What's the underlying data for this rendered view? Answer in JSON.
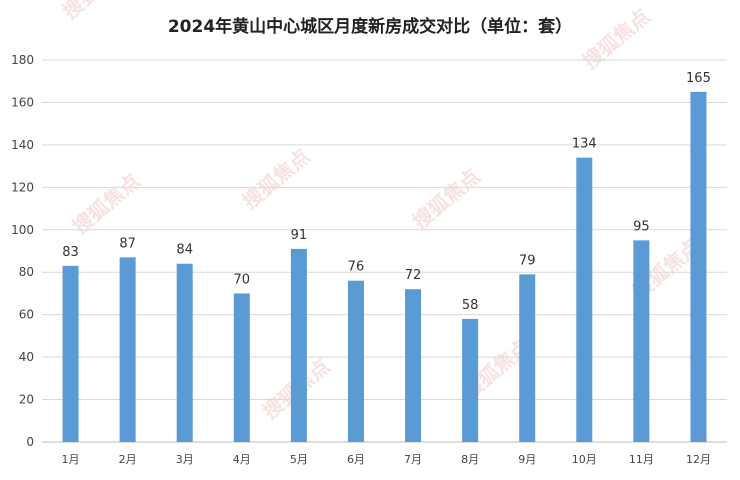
{
  "chart_data": {
    "type": "bar",
    "title": "2024年黄山中心城区月度新房成交对比（单位：套）",
    "categories": [
      "1月",
      "2月",
      "3月",
      "4月",
      "5月",
      "6月",
      "7月",
      "8月",
      "9月",
      "10月",
      "11月",
      "12月"
    ],
    "values": [
      83,
      87,
      84,
      70,
      91,
      76,
      72,
      58,
      79,
      134,
      95,
      165
    ],
    "ylim": [
      0,
      180
    ],
    "yticks": [
      0,
      20,
      40,
      60,
      80,
      100,
      120,
      140,
      160,
      180
    ],
    "grid": true,
    "legend": "none",
    "bar_color": "#5b9bd5"
  },
  "watermark": {
    "text": "搜狐焦点"
  }
}
